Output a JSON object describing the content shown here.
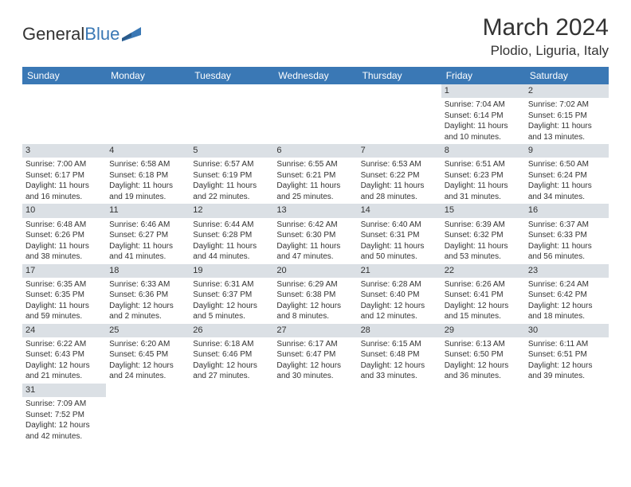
{
  "logo": {
    "text1": "General",
    "text2": "Blue"
  },
  "title": "March 2024",
  "location": "Plodio, Liguria, Italy",
  "colors": {
    "header_bg": "#3a78b5",
    "header_text": "#ffffff",
    "daynum_bg": "#dbe0e5",
    "body_text": "#333333",
    "logo_blue": "#3a78b5"
  },
  "weekdays": [
    "Sunday",
    "Monday",
    "Tuesday",
    "Wednesday",
    "Thursday",
    "Friday",
    "Saturday"
  ],
  "weeks": [
    [
      {
        "n": "",
        "lines": []
      },
      {
        "n": "",
        "lines": []
      },
      {
        "n": "",
        "lines": []
      },
      {
        "n": "",
        "lines": []
      },
      {
        "n": "",
        "lines": []
      },
      {
        "n": "1",
        "lines": [
          "Sunrise: 7:04 AM",
          "Sunset: 6:14 PM",
          "Daylight: 11 hours",
          "and 10 minutes."
        ]
      },
      {
        "n": "2",
        "lines": [
          "Sunrise: 7:02 AM",
          "Sunset: 6:15 PM",
          "Daylight: 11 hours",
          "and 13 minutes."
        ]
      }
    ],
    [
      {
        "n": "3",
        "lines": [
          "Sunrise: 7:00 AM",
          "Sunset: 6:17 PM",
          "Daylight: 11 hours",
          "and 16 minutes."
        ]
      },
      {
        "n": "4",
        "lines": [
          "Sunrise: 6:58 AM",
          "Sunset: 6:18 PM",
          "Daylight: 11 hours",
          "and 19 minutes."
        ]
      },
      {
        "n": "5",
        "lines": [
          "Sunrise: 6:57 AM",
          "Sunset: 6:19 PM",
          "Daylight: 11 hours",
          "and 22 minutes."
        ]
      },
      {
        "n": "6",
        "lines": [
          "Sunrise: 6:55 AM",
          "Sunset: 6:21 PM",
          "Daylight: 11 hours",
          "and 25 minutes."
        ]
      },
      {
        "n": "7",
        "lines": [
          "Sunrise: 6:53 AM",
          "Sunset: 6:22 PM",
          "Daylight: 11 hours",
          "and 28 minutes."
        ]
      },
      {
        "n": "8",
        "lines": [
          "Sunrise: 6:51 AM",
          "Sunset: 6:23 PM",
          "Daylight: 11 hours",
          "and 31 minutes."
        ]
      },
      {
        "n": "9",
        "lines": [
          "Sunrise: 6:50 AM",
          "Sunset: 6:24 PM",
          "Daylight: 11 hours",
          "and 34 minutes."
        ]
      }
    ],
    [
      {
        "n": "10",
        "lines": [
          "Sunrise: 6:48 AM",
          "Sunset: 6:26 PM",
          "Daylight: 11 hours",
          "and 38 minutes."
        ]
      },
      {
        "n": "11",
        "lines": [
          "Sunrise: 6:46 AM",
          "Sunset: 6:27 PM",
          "Daylight: 11 hours",
          "and 41 minutes."
        ]
      },
      {
        "n": "12",
        "lines": [
          "Sunrise: 6:44 AM",
          "Sunset: 6:28 PM",
          "Daylight: 11 hours",
          "and 44 minutes."
        ]
      },
      {
        "n": "13",
        "lines": [
          "Sunrise: 6:42 AM",
          "Sunset: 6:30 PM",
          "Daylight: 11 hours",
          "and 47 minutes."
        ]
      },
      {
        "n": "14",
        "lines": [
          "Sunrise: 6:40 AM",
          "Sunset: 6:31 PM",
          "Daylight: 11 hours",
          "and 50 minutes."
        ]
      },
      {
        "n": "15",
        "lines": [
          "Sunrise: 6:39 AM",
          "Sunset: 6:32 PM",
          "Daylight: 11 hours",
          "and 53 minutes."
        ]
      },
      {
        "n": "16",
        "lines": [
          "Sunrise: 6:37 AM",
          "Sunset: 6:33 PM",
          "Daylight: 11 hours",
          "and 56 minutes."
        ]
      }
    ],
    [
      {
        "n": "17",
        "lines": [
          "Sunrise: 6:35 AM",
          "Sunset: 6:35 PM",
          "Daylight: 11 hours",
          "and 59 minutes."
        ]
      },
      {
        "n": "18",
        "lines": [
          "Sunrise: 6:33 AM",
          "Sunset: 6:36 PM",
          "Daylight: 12 hours",
          "and 2 minutes."
        ]
      },
      {
        "n": "19",
        "lines": [
          "Sunrise: 6:31 AM",
          "Sunset: 6:37 PM",
          "Daylight: 12 hours",
          "and 5 minutes."
        ]
      },
      {
        "n": "20",
        "lines": [
          "Sunrise: 6:29 AM",
          "Sunset: 6:38 PM",
          "Daylight: 12 hours",
          "and 8 minutes."
        ]
      },
      {
        "n": "21",
        "lines": [
          "Sunrise: 6:28 AM",
          "Sunset: 6:40 PM",
          "Daylight: 12 hours",
          "and 12 minutes."
        ]
      },
      {
        "n": "22",
        "lines": [
          "Sunrise: 6:26 AM",
          "Sunset: 6:41 PM",
          "Daylight: 12 hours",
          "and 15 minutes."
        ]
      },
      {
        "n": "23",
        "lines": [
          "Sunrise: 6:24 AM",
          "Sunset: 6:42 PM",
          "Daylight: 12 hours",
          "and 18 minutes."
        ]
      }
    ],
    [
      {
        "n": "24",
        "lines": [
          "Sunrise: 6:22 AM",
          "Sunset: 6:43 PM",
          "Daylight: 12 hours",
          "and 21 minutes."
        ]
      },
      {
        "n": "25",
        "lines": [
          "Sunrise: 6:20 AM",
          "Sunset: 6:45 PM",
          "Daylight: 12 hours",
          "and 24 minutes."
        ]
      },
      {
        "n": "26",
        "lines": [
          "Sunrise: 6:18 AM",
          "Sunset: 6:46 PM",
          "Daylight: 12 hours",
          "and 27 minutes."
        ]
      },
      {
        "n": "27",
        "lines": [
          "Sunrise: 6:17 AM",
          "Sunset: 6:47 PM",
          "Daylight: 12 hours",
          "and 30 minutes."
        ]
      },
      {
        "n": "28",
        "lines": [
          "Sunrise: 6:15 AM",
          "Sunset: 6:48 PM",
          "Daylight: 12 hours",
          "and 33 minutes."
        ]
      },
      {
        "n": "29",
        "lines": [
          "Sunrise: 6:13 AM",
          "Sunset: 6:50 PM",
          "Daylight: 12 hours",
          "and 36 minutes."
        ]
      },
      {
        "n": "30",
        "lines": [
          "Sunrise: 6:11 AM",
          "Sunset: 6:51 PM",
          "Daylight: 12 hours",
          "and 39 minutes."
        ]
      }
    ],
    [
      {
        "n": "31",
        "lines": [
          "Sunrise: 7:09 AM",
          "Sunset: 7:52 PM",
          "Daylight: 12 hours",
          "and 42 minutes."
        ]
      },
      {
        "n": "",
        "lines": []
      },
      {
        "n": "",
        "lines": []
      },
      {
        "n": "",
        "lines": []
      },
      {
        "n": "",
        "lines": []
      },
      {
        "n": "",
        "lines": []
      },
      {
        "n": "",
        "lines": []
      }
    ]
  ]
}
